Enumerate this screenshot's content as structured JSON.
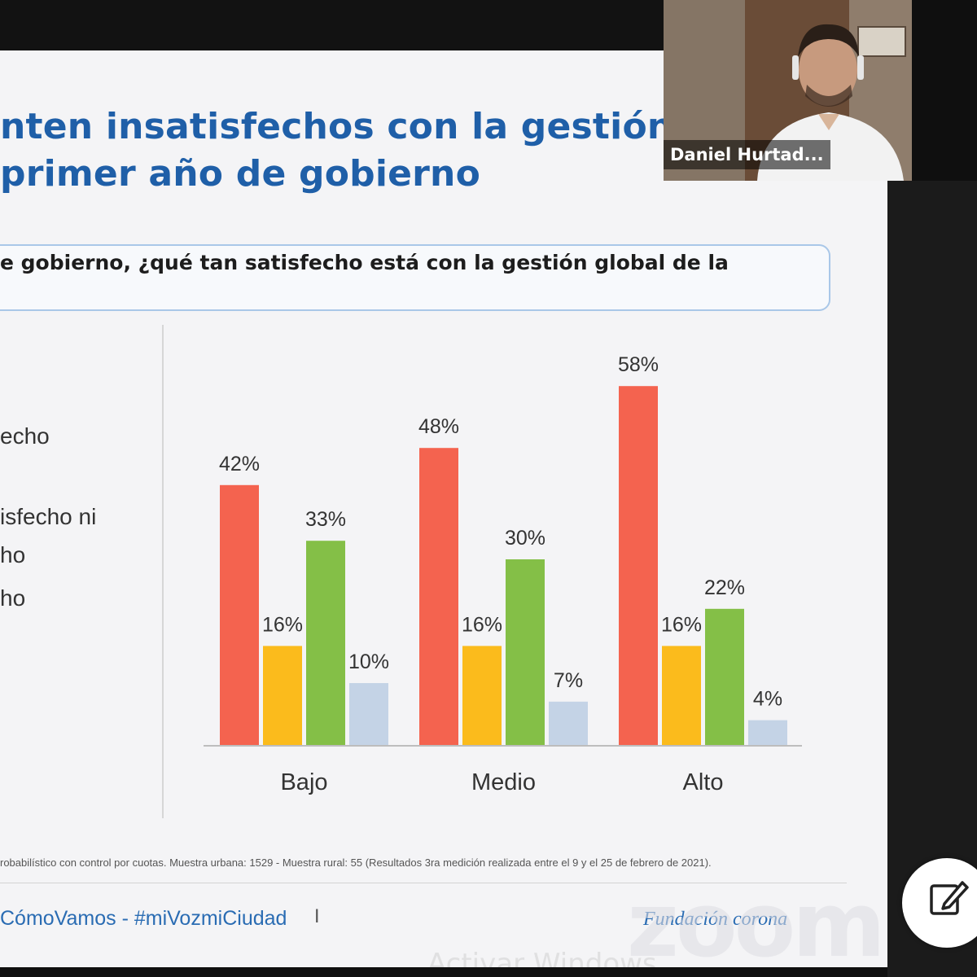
{
  "slide": {
    "title_line1": "nten insatisfechos con la gestión",
    "title_line2": "primer año de gobierno",
    "question": "e gobierno, ¿qué tan satisfecho está con la gestión global de la",
    "legend_fragments": [
      "echo",
      "isfecho ni",
      "ho",
      "ho"
    ],
    "footnote": "robabilístico con control por cuotas. Muestra urbana: 1529 -  Muestra rural: 55 (Resultados 3ra medición realizada entre el 9 y el 25 de febrero de 2021).",
    "hashtags": "CómoVamos - #miVozmiCiudad",
    "separator": "I",
    "brand": "Fundación corona"
  },
  "chart_data": {
    "type": "bar",
    "categories": [
      "Bajo",
      "Medio",
      "Alto"
    ],
    "series": [
      {
        "values": [
          42,
          48,
          58
        ],
        "color": "#f4634f"
      },
      {
        "values": [
          16,
          16,
          16
        ],
        "color": "#fbbb1c"
      },
      {
        "values": [
          33,
          30,
          22
        ],
        "color": "#84bf47"
      },
      {
        "values": [
          10,
          7,
          4
        ],
        "color": "#c4d3e6"
      }
    ],
    "value_labels": [
      [
        "42%",
        "48%",
        "58%"
      ],
      [
        "16%",
        "16%",
        "16%"
      ],
      [
        "33%",
        "30%",
        "22%"
      ],
      [
        "10%",
        "7%",
        "4%"
      ]
    ],
    "ylim": [
      0,
      60
    ],
    "grid": false,
    "legend": "left"
  },
  "video": {
    "participant_name": "Daniel Hurtad..."
  },
  "overlays": {
    "zoom_watermark": "zoom",
    "activate_windows": "Activar Windows"
  },
  "icons": {
    "edit": "edit-icon"
  }
}
